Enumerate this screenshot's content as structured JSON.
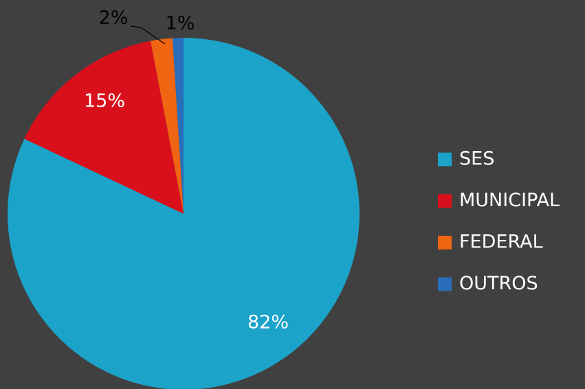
{
  "chart_data": {
    "type": "pie",
    "categories": [
      "SES",
      "MUNICIPAL",
      "FEDERAL",
      "OUTROS"
    ],
    "values": [
      82,
      15,
      2,
      1
    ],
    "value_labels": [
      "82%",
      "15%",
      "2%",
      "1%"
    ],
    "colors": [
      "#1ba3c9",
      "#d9101c",
      "#f06512",
      "#2a6db8"
    ],
    "legend": "right"
  }
}
